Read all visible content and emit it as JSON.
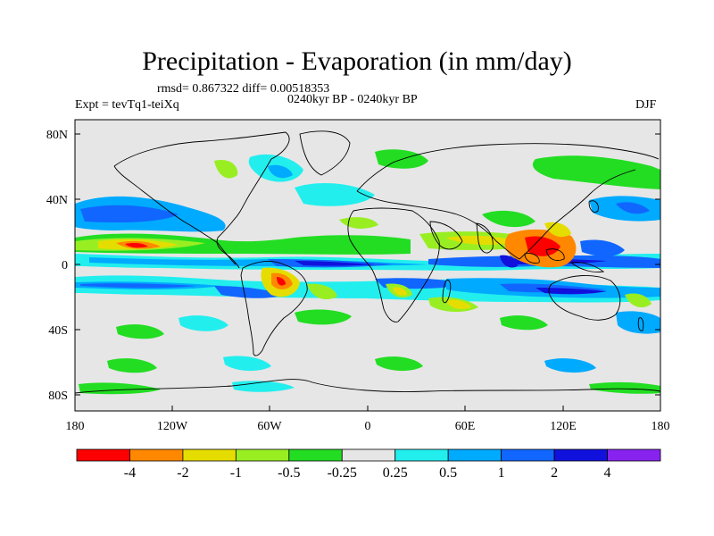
{
  "header": {
    "title": "Precipitation - Evaporation (in mm/day)",
    "stats": "rmsd= 0.867322 diff= 0.00518353",
    "expt": "Expt = tevTq1-teiXq",
    "period": "0240kyr BP - 0240kyr BP",
    "season": "DJF"
  },
  "axes": {
    "lat_ticks": [
      "80N",
      "40N",
      "0",
      "40S",
      "80S"
    ],
    "lon_ticks": [
      "180",
      "120W",
      "60W",
      "0",
      "60E",
      "120E",
      "180"
    ]
  },
  "colorbar": {
    "colors": [
      "#ff0000",
      "#ff8800",
      "#e6dd00",
      "#99ee22",
      "#22dd22",
      "#e6e6e6",
      "#22eeee",
      "#00aaff",
      "#1166ff",
      "#1111dd",
      "#8822ee"
    ],
    "labels": [
      "-4",
      "-2",
      "-1",
      "-0.5",
      "-0.25",
      "0.25",
      "0.5",
      "1",
      "2",
      "4"
    ]
  }
}
